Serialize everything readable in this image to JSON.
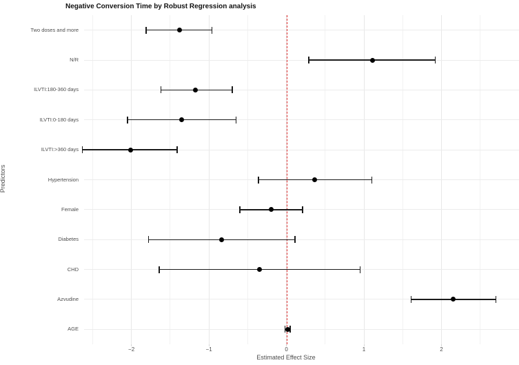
{
  "chart_data": {
    "type": "scatter",
    "subtype": "forest-plot-with-error-bars",
    "title": "Negative Conversion Time by Robust Regression analysis",
    "xlabel": "Estimated Effect Size",
    "ylabel": "Predictors",
    "xlim": [
      -2.61,
      3.0
    ],
    "x_ticks": [
      -2,
      -1,
      0,
      1,
      2
    ],
    "x_tick_labels": [
      "−2",
      "−1",
      "0",
      "1",
      "2"
    ],
    "x_minor_gridlines": [
      -2.5,
      -1.5,
      -0.5,
      0.5,
      1.5,
      2.5
    ],
    "grid": true,
    "legend": "none",
    "background_color": "#ffffff",
    "gridline_color": "#e7e7e7",
    "point_color": "#000000",
    "errorbar_color": "#1a1a1a",
    "reference_line": {
      "x": 0,
      "style": "dashed",
      "color": "#e02c2c"
    },
    "rows": [
      {
        "label": "Two doses and more",
        "estimate": -1.38,
        "ci_low": -1.81,
        "ci_high": -0.96
      },
      {
        "label": "N/R",
        "estimate": 1.11,
        "ci_low": 0.29,
        "ci_high": 1.92
      },
      {
        "label": "ILVTI:180-360 days",
        "estimate": -1.17,
        "ci_low": -1.62,
        "ci_high": -0.7
      },
      {
        "label": "ILVTI:0-180 days",
        "estimate": -1.35,
        "ci_low": -2.05,
        "ci_high": -0.65
      },
      {
        "label": "ILVTI:>360 days",
        "estimate": -2.01,
        "ci_low": -2.63,
        "ci_high": -1.41
      },
      {
        "label": "Hypertension",
        "estimate": 0.36,
        "ci_low": -0.36,
        "ci_high": 1.1
      },
      {
        "label": "Female",
        "estimate": -0.2,
        "ci_low": -0.6,
        "ci_high": 0.21
      },
      {
        "label": "Diabetes",
        "estimate": -0.84,
        "ci_low": -1.78,
        "ci_high": 0.11
      },
      {
        "label": "CHD",
        "estimate": -0.35,
        "ci_low": -1.64,
        "ci_high": 0.95
      },
      {
        "label": "Azvudine",
        "estimate": 2.15,
        "ci_low": 1.61,
        "ci_high": 2.7
      },
      {
        "label": "AGE",
        "estimate": 0.02,
        "ci_low": -0.02,
        "ci_high": 0.05
      }
    ]
  }
}
